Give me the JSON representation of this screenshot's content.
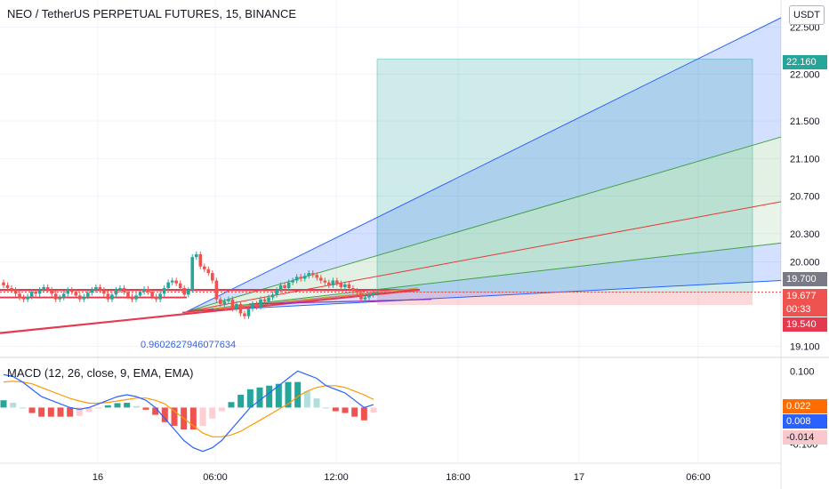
{
  "header": {
    "title": "NEO / TetherUS PERPETUAL FUTURES, 15, BINANCE",
    "currency": "USDT"
  },
  "macd_header": {
    "title": "MACD (12, 26, close, 9, EMA, EMA)"
  },
  "price_labels": {
    "target": "22.160",
    "level": "19.700",
    "last": "19.677",
    "countdown": "00:33",
    "stop": "19.540",
    "macd_signal": "0.022",
    "macd_line": "0.008",
    "macd_hist": "-0.014"
  },
  "annotation": {
    "ratio": "0.9602627946077634"
  },
  "colors": {
    "up": "#26a69a",
    "down": "#ef5350",
    "fan_blue": "#2962ff",
    "fan_green": "#43a047",
    "fan_red": "#e53935",
    "profit": "#26a69a",
    "loss": "#f7a8ae",
    "macd_line": "#2962ff",
    "signal_line": "#ff9800"
  },
  "chart_data": [
    {
      "type": "candlestick",
      "title": "NEO / TetherUS PERPETUAL FUTURES, 15, BINANCE",
      "x_ticks": [
        "16",
        "06:00",
        "12:00",
        "18:00",
        "17",
        "06:00"
      ],
      "y_ticks": [
        22.5,
        22.0,
        21.5,
        21.1,
        20.7,
        20.3,
        20.0,
        19.1
      ],
      "ylim": [
        19.0,
        22.6
      ],
      "close": [
        19.75,
        19.72,
        19.7,
        19.66,
        19.62,
        19.6,
        19.63,
        19.68,
        19.66,
        19.7,
        19.73,
        19.7,
        19.66,
        19.6,
        19.62,
        19.66,
        19.7,
        19.68,
        19.64,
        19.6,
        19.63,
        19.67,
        19.7,
        19.73,
        19.7,
        19.66,
        19.6,
        19.65,
        19.7,
        19.72,
        19.68,
        19.63,
        19.6,
        19.64,
        19.68,
        19.71,
        19.68,
        19.63,
        19.6,
        19.66,
        19.72,
        19.78,
        19.8,
        19.77,
        19.72,
        19.65,
        19.7,
        20.05,
        20.08,
        19.95,
        19.92,
        19.88,
        19.8,
        19.6,
        19.55,
        19.58,
        19.6,
        19.5,
        19.55,
        19.45,
        19.42,
        19.5,
        19.55,
        19.52,
        19.6,
        19.58,
        19.62,
        19.65,
        19.7,
        19.75,
        19.72,
        19.78,
        19.8,
        19.84,
        19.82,
        19.85,
        19.88,
        19.86,
        19.83,
        19.8,
        19.78,
        19.75,
        19.8,
        19.77,
        19.73,
        19.76,
        19.72,
        19.69,
        19.67,
        19.6,
        19.62,
        19.65,
        19.67,
        19.677
      ],
      "drawings": {
        "horizontal_level": 19.7,
        "long_position": {
          "entry": 19.677,
          "target": 22.16,
          "stop": 19.54
        },
        "fib_ratio_label": "0.9602627946077634"
      }
    },
    {
      "type": "bar+line",
      "title": "MACD (12, 26, close, 9, EMA, EMA)",
      "y_ticks": [
        0.1,
        0.0,
        -0.1
      ],
      "ylim": [
        -0.15,
        0.13
      ],
      "macd": [
        0.09,
        0.085,
        0.07,
        0.05,
        0.03,
        0.02,
        0.01,
        0.0,
        -0.005,
        0.0,
        0.01,
        0.02,
        0.03,
        0.035,
        0.03,
        0.02,
        0.0,
        -0.03,
        -0.06,
        -0.09,
        -0.11,
        -0.12,
        -0.11,
        -0.09,
        -0.06,
        -0.03,
        0.0,
        0.02,
        0.04,
        0.06,
        0.08,
        0.1,
        0.09,
        0.08,
        0.06,
        0.05,
        0.04,
        0.02,
        0.0,
        0.008
      ],
      "signal": [
        0.07,
        0.072,
        0.07,
        0.065,
        0.055,
        0.045,
        0.035,
        0.025,
        0.018,
        0.012,
        0.012,
        0.014,
        0.018,
        0.022,
        0.026,
        0.026,
        0.02,
        0.01,
        -0.01,
        -0.03,
        -0.05,
        -0.07,
        -0.08,
        -0.08,
        -0.075,
        -0.065,
        -0.05,
        -0.035,
        -0.02,
        -0.005,
        0.01,
        0.03,
        0.045,
        0.055,
        0.06,
        0.06,
        0.055,
        0.045,
        0.035,
        0.022
      ],
      "histogram": [
        0.02,
        0.013,
        0.0,
        -0.015,
        -0.025,
        -0.025,
        -0.025,
        -0.025,
        -0.023,
        -0.012,
        -0.002,
        0.006,
        0.012,
        0.013,
        0.004,
        -0.006,
        -0.02,
        -0.04,
        -0.05,
        -0.06,
        -0.06,
        -0.05,
        -0.03,
        -0.01,
        0.015,
        0.035,
        0.05,
        0.055,
        0.06,
        0.065,
        0.07,
        0.07,
        0.045,
        0.025,
        0.0,
        -0.01,
        -0.015,
        -0.025,
        -0.035,
        -0.014
      ]
    }
  ]
}
